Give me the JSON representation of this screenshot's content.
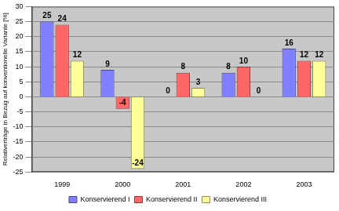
{
  "chart_data": {
    "type": "bar",
    "y_label": "Relativerträge in Bezug auf konventionelle Variante [%]",
    "categories": [
      "1999",
      "2000",
      "2001",
      "2002",
      "2003"
    ],
    "series": [
      {
        "name": "Konservierend I",
        "color": "#8080ff",
        "values": [
          25,
          9,
          0,
          8,
          16
        ]
      },
      {
        "name": "Konservierend II",
        "color": "#ff6666",
        "values": [
          24,
          -4,
          8,
          10,
          12
        ]
      },
      {
        "name": "Konservierend III",
        "color": "#ffff99",
        "values": [
          12,
          -24,
          3,
          0,
          12
        ]
      }
    ],
    "ylim": [
      -25,
      30
    ],
    "yticks": [
      -25,
      -20,
      -15,
      -10,
      -5,
      0,
      5,
      10,
      15,
      20,
      25,
      30
    ],
    "grid": true,
    "legend": "bottom",
    "data_labels": true
  }
}
